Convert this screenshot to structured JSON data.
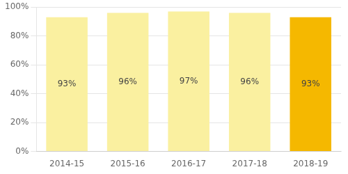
{
  "chart_data": {
    "type": "bar",
    "categories": [
      "2014-15",
      "2015-16",
      "2016-17",
      "2017-18",
      "2018-19"
    ],
    "values": [
      93,
      96,
      97,
      96,
      93
    ],
    "value_labels": [
      "93%",
      "96%",
      "97%",
      "96%",
      "93%"
    ],
    "data_labels": true,
    "colors": [
      "#FAF0A0",
      "#FAF0A0",
      "#FAF0A0",
      "#FAF0A0",
      "#F5B800"
    ],
    "ylim": [
      0,
      100
    ],
    "yticks": [
      {
        "value": 0,
        "label": "0%"
      },
      {
        "value": 20,
        "label": "20%"
      },
      {
        "value": 40,
        "label": "40%"
      },
      {
        "value": 60,
        "label": "60%"
      },
      {
        "value": 80,
        "label": "80%"
      },
      {
        "value": 100,
        "label": "100%"
      }
    ],
    "grid": true
  }
}
